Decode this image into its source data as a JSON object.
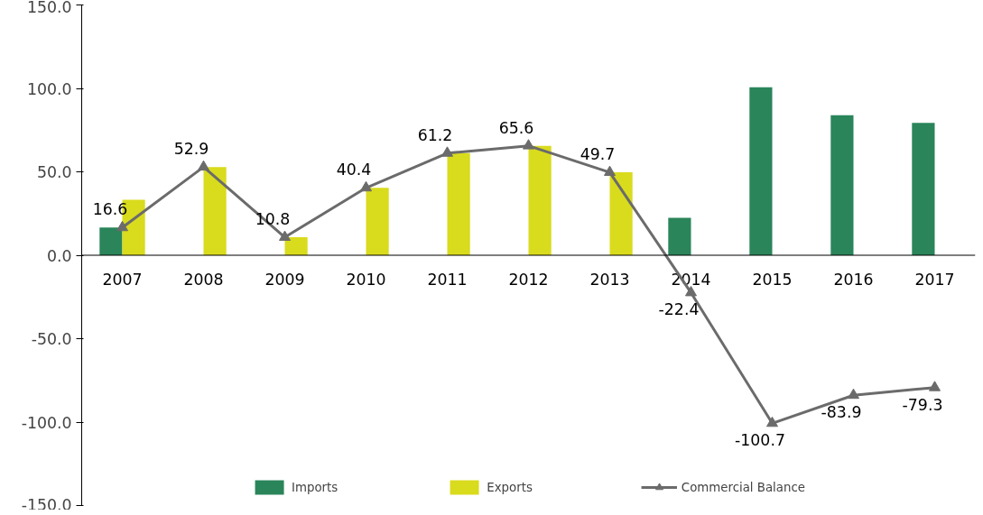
{
  "chart_data": {
    "type": "bar",
    "categories": [
      "2007",
      "2008",
      "2009",
      "2010",
      "2011",
      "2012",
      "2013",
      "2014",
      "2015",
      "2016",
      "2017"
    ],
    "ylim": [
      -150,
      150
    ],
    "yticks": [
      {
        "value": -150,
        "label": "-150.0"
      },
      {
        "value": -100,
        "label": "-100.0"
      },
      {
        "value": -50,
        "label": "-50.0"
      },
      {
        "value": 0,
        "label": "0.0"
      },
      {
        "value": 50,
        "label": "50.0"
      },
      {
        "value": 100,
        "label": "100.0"
      },
      {
        "value": 150,
        "label": "150.0"
      }
    ],
    "grid": false,
    "legend": "bottom",
    "series": [
      {
        "name": "Imports",
        "color": "#2a855a",
        "values": [
          16.6,
          null,
          null,
          null,
          null,
          null,
          null,
          22.4,
          100.7,
          83.9,
          79.3
        ]
      },
      {
        "name": "Exports",
        "color": "#d9db1d",
        "values": [
          33.2,
          52.9,
          10.8,
          40.4,
          61.2,
          65.6,
          49.7,
          null,
          null,
          null,
          null
        ]
      },
      {
        "name": "Commercial Balance",
        "type": "line",
        "color": "#6b6b6b",
        "marker": "triangle",
        "values": [
          16.6,
          52.9,
          10.8,
          40.4,
          61.2,
          65.6,
          49.7,
          -22.4,
          -100.7,
          -83.9,
          -79.3
        ],
        "value_labels": [
          "16.6",
          "52.9",
          "10.8",
          "40.4",
          "61.2",
          "65.6",
          "49.7",
          "-22.4",
          "-100.7",
          "-83.9",
          "-79.3"
        ]
      }
    ]
  }
}
